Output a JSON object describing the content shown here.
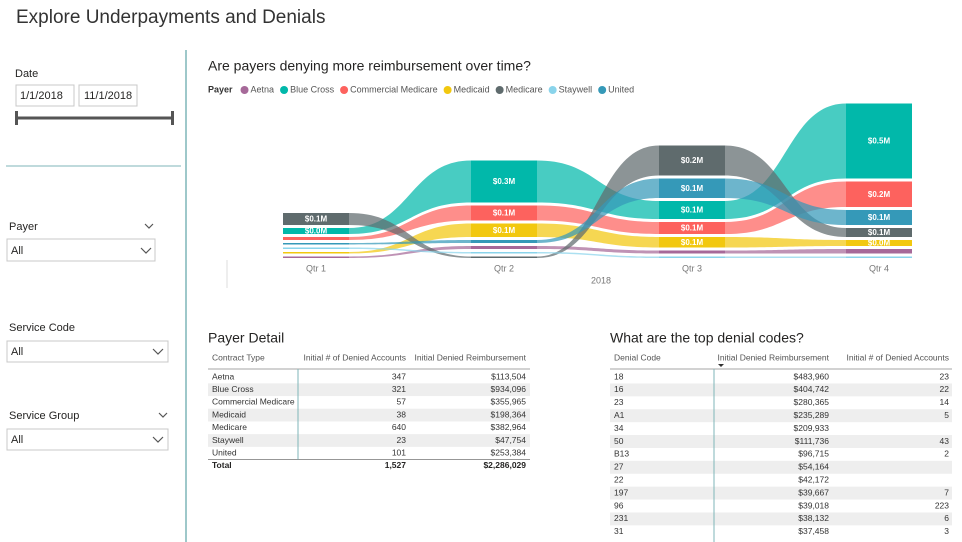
{
  "header": {
    "title": "Explore Underpayments and Denials"
  },
  "filters": {
    "date": {
      "label": "Date",
      "start": "1/1/2018",
      "end": "11/1/2018"
    },
    "payer": {
      "label": "Payer",
      "value": "All"
    },
    "service_code": {
      "label": "Service Code",
      "value": "All"
    },
    "service_group": {
      "label": "Service Group",
      "value": "All"
    }
  },
  "chart_data": {
    "type": "ribbon",
    "title": "Are payers denying more reimbursement over time?",
    "legend_title": "Payer",
    "x_label": "2018",
    "categories": [
      "Qtr 1",
      "Qtr 2",
      "Qtr 3",
      "Qtr 4"
    ],
    "series": [
      {
        "name": "Aetna",
        "color": "#a66999",
        "values": [
          0.01,
          0.02,
          0.02,
          0.03
        ],
        "value_labels": [
          null,
          null,
          null,
          null
        ]
      },
      {
        "name": "Blue Cross",
        "color": "#01b8aa",
        "values": [
          0.04,
          0.28,
          0.12,
          0.5
        ],
        "value_labels": [
          "$0.0M",
          "$0.3M",
          "$0.1M",
          "$0.5M"
        ]
      },
      {
        "name": "Commercial Medicare",
        "color": "#fd625e",
        "values": [
          0.02,
          0.1,
          0.08,
          0.17
        ],
        "value_labels": [
          null,
          "$0.1M",
          "$0.1M",
          "$0.2M"
        ]
      },
      {
        "name": "Medicaid",
        "color": "#f2c80f",
        "values": [
          0.01,
          0.09,
          0.07,
          0.04
        ],
        "value_labels": [
          null,
          "$0.1M",
          "$0.1M",
          "$0.0M"
        ]
      },
      {
        "name": "Medicare",
        "color": "#5f6b6d",
        "values": [
          0.08,
          0.01,
          0.2,
          0.06
        ],
        "value_labels": [
          "$0.1M",
          null,
          "$0.2M",
          "$0.1M"
        ]
      },
      {
        "name": "Staywell",
        "color": "#8ad4eb",
        "values": [
          0.01,
          0.01,
          0.01,
          0.01
        ],
        "value_labels": [
          null,
          null,
          null,
          null
        ]
      },
      {
        "name": "United",
        "color": "#3599b8",
        "values": [
          0.01,
          0.02,
          0.13,
          0.1
        ],
        "value_labels": [
          null,
          null,
          "$0.1M",
          "$0.1M"
        ]
      }
    ]
  },
  "payer_detail": {
    "title": "Payer Detail",
    "columns": [
      "Contract Type",
      "Initial # of Denied Accounts",
      "Initial Denied Reimbursement"
    ],
    "rows": [
      [
        "Aetna",
        "347",
        "$113,504"
      ],
      [
        "Blue Cross",
        "321",
        "$934,096"
      ],
      [
        "Commercial Medicare",
        "57",
        "$355,965"
      ],
      [
        "Medicaid",
        "38",
        "$198,364"
      ],
      [
        "Medicare",
        "640",
        "$382,964"
      ],
      [
        "Staywell",
        "23",
        "$47,754"
      ],
      [
        "United",
        "101",
        "$253,384"
      ]
    ],
    "total": [
      "Total",
      "1,527",
      "$2,286,029"
    ]
  },
  "denial_codes": {
    "title": "What are the top denial codes?",
    "columns": [
      "Denial Code",
      "Initial Denied Reimbursement",
      "Initial # of Denied Accounts"
    ],
    "rows": [
      [
        "18",
        "$483,960",
        "23"
      ],
      [
        "16",
        "$404,742",
        "22"
      ],
      [
        "23",
        "$280,365",
        "14"
      ],
      [
        "A1",
        "$235,289",
        "5"
      ],
      [
        "34",
        "$209,933",
        null
      ],
      [
        "50",
        "$111,736",
        "43"
      ],
      [
        "B13",
        "$96,715",
        "2"
      ],
      [
        "27",
        "$54,164",
        null
      ],
      [
        "22",
        "$42,172",
        null
      ],
      [
        "197",
        "$39,667",
        "7"
      ],
      [
        "96",
        "$39,018",
        "223"
      ],
      [
        "231",
        "$38,132",
        "6"
      ],
      [
        "31",
        "$37,458",
        "3"
      ]
    ]
  }
}
